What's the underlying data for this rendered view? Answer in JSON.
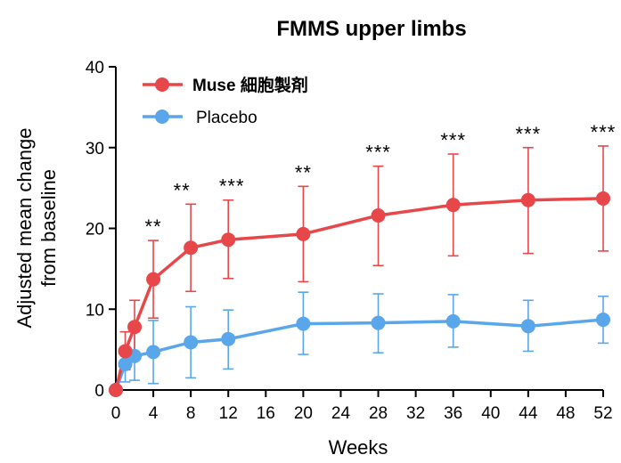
{
  "chart_data": {
    "type": "line",
    "title": "FMMS upper limbs",
    "xlabel": "Weeks",
    "ylabel_lines": [
      "Adjusted mean change",
      "from baseline"
    ],
    "xlim": [
      0,
      52
    ],
    "ylim": [
      0,
      40
    ],
    "x_ticks": [
      0,
      4,
      8,
      12,
      16,
      20,
      24,
      28,
      32,
      36,
      40,
      44,
      48,
      52
    ],
    "y_ticks": [
      0,
      10,
      20,
      30,
      40
    ],
    "grid": false,
    "legend_position": "top-left",
    "series": [
      {
        "name": "Muse 細胞製剤",
        "color": "#e8474a",
        "bold_label": true,
        "x": [
          0,
          1,
          2,
          4,
          8,
          12,
          20,
          28,
          36,
          44,
          52
        ],
        "y": [
          0,
          4.8,
          7.8,
          13.7,
          17.6,
          18.6,
          19.3,
          21.6,
          22.9,
          23.5,
          23.7
        ],
        "err_low": [
          0,
          2.5,
          4.5,
          8.9,
          12.2,
          13.8,
          13.4,
          15.4,
          16.6,
          16.9,
          17.2
        ],
        "err_high": [
          0,
          7.2,
          11.1,
          18.5,
          23.0,
          23.5,
          25.2,
          27.7,
          29.2,
          30.0,
          30.2
        ]
      },
      {
        "name": "Placebo",
        "color": "#5aa6ea",
        "bold_label": false,
        "x": [
          0,
          1,
          2,
          4,
          8,
          12,
          20,
          28,
          36,
          44,
          52
        ],
        "y": [
          0,
          3.2,
          4.2,
          4.7,
          5.9,
          6.3,
          8.2,
          8.3,
          8.5,
          7.9,
          8.7
        ],
        "err_low": [
          0,
          1.0,
          1.2,
          0.8,
          1.5,
          2.6,
          4.4,
          4.6,
          5.3,
          4.8,
          5.8
        ],
        "err_high": [
          0,
          5.3,
          7.2,
          8.6,
          10.3,
          9.9,
          12.1,
          11.9,
          11.8,
          11.1,
          11.6
        ]
      }
    ],
    "annotations": [
      {
        "x": 4,
        "text": "**"
      },
      {
        "x": 8,
        "text": "**"
      },
      {
        "x": 12,
        "text": "***"
      },
      {
        "x": 20,
        "text": "**"
      },
      {
        "x": 28,
        "text": "***"
      },
      {
        "x": 36,
        "text": "***"
      },
      {
        "x": 44,
        "text": "***"
      },
      {
        "x": 52,
        "text": "***"
      }
    ]
  }
}
